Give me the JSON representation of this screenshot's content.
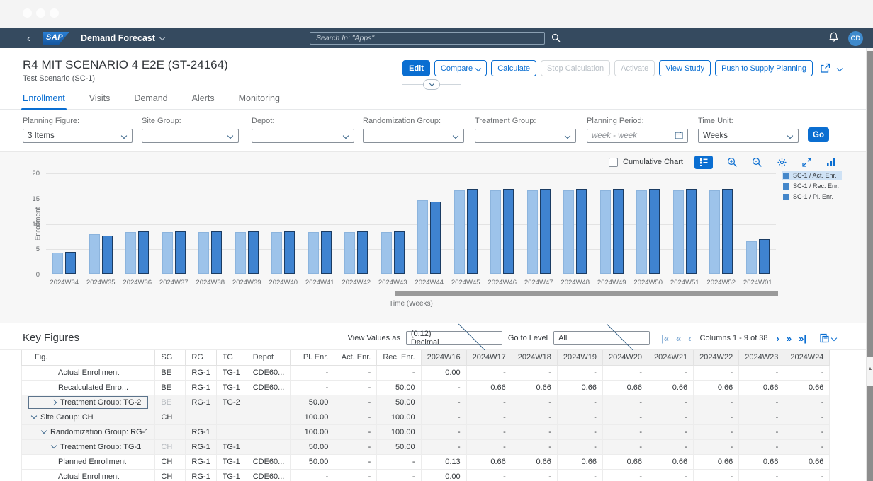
{
  "shell": {
    "logo_text": "SAP",
    "app_title": "Demand Forecast",
    "search_placeholder": "Search In: \"Apps\"",
    "avatar_initials": "CD"
  },
  "page": {
    "title": "R4 MIT SCENARIO 4 E2E (ST-24164)",
    "subtitle": "Test Scenario (SC-1)"
  },
  "header_actions": {
    "edit": "Edit",
    "compare": "Compare",
    "calculate": "Calculate",
    "stop_calculation": "Stop Calculation",
    "activate": "Activate",
    "view_study": "View Study",
    "push_to_supply_planning": "Push to Supply Planning"
  },
  "tabs": [
    {
      "label": "Enrollment",
      "active": true
    },
    {
      "label": "Visits",
      "active": false
    },
    {
      "label": "Demand",
      "active": false
    },
    {
      "label": "Alerts",
      "active": false
    },
    {
      "label": "Monitoring",
      "active": false
    }
  ],
  "filters": [
    {
      "label": "Planning Figure:",
      "value": "3 Items",
      "type": "select"
    },
    {
      "label": "Site Group:",
      "value": "",
      "type": "select"
    },
    {
      "label": "Depot:",
      "value": "",
      "type": "select"
    },
    {
      "label": "Randomization Group:",
      "value": "",
      "type": "select"
    },
    {
      "label": "Treatment Group:",
      "value": "",
      "type": "select"
    },
    {
      "label": "Planning Period:",
      "value": "",
      "placeholder": "week - week",
      "type": "date"
    },
    {
      "label": "Time Unit:",
      "value": "Weeks",
      "type": "select"
    }
  ],
  "go_button": "Go",
  "chart_toolbar": {
    "cumulative_chart_label": "Cumulative Chart"
  },
  "chart_data": {
    "type": "bar",
    "title": "",
    "xlabel": "Time (Weeks)",
    "ylabel": "Enrollment",
    "ylim": [
      0,
      20
    ],
    "yticks": [
      0,
      5,
      10,
      15,
      20
    ],
    "grid": true,
    "legend_position": "right",
    "categories": [
      "2024W34",
      "2024W35",
      "2024W36",
      "2024W37",
      "2024W38",
      "2024W39",
      "2024W40",
      "2024W41",
      "2024W42",
      "2024W43",
      "2024W44",
      "2024W45",
      "2024W46",
      "2024W47",
      "2024W48",
      "2024W49",
      "2024W50",
      "2024W51",
      "2024W52",
      "2024W01"
    ],
    "series": [
      {
        "name": "SC-1 / Act. Enr.",
        "color": "#5697d9",
        "values": null,
        "selected": true
      },
      {
        "name": "SC-1 / Rec. Enr.",
        "color": "#9dc3ea",
        "values": [
          4.2,
          7.8,
          8.2,
          8.2,
          8.2,
          8.2,
          8.2,
          8.2,
          8.2,
          8.2,
          14.5,
          16.5,
          16.5,
          16.5,
          16.5,
          16.5,
          16.5,
          16.5,
          16.5,
          6.5
        ]
      },
      {
        "name": "SC-1 / Pl. Enr.",
        "color": "#3f83d0",
        "values": [
          4.4,
          7.5,
          8.4,
          8.4,
          8.4,
          8.4,
          8.4,
          8.4,
          8.4,
          8.4,
          14.2,
          16.8,
          16.8,
          16.8,
          16.8,
          16.8,
          16.8,
          16.8,
          16.8,
          6.8
        ]
      }
    ]
  },
  "key_figures": {
    "title": "Key Figures",
    "view_values_label": "View Values as",
    "view_values_value": "(0.12) Decimal",
    "go_to_level_label": "Go to Level",
    "go_to_level_value": "All",
    "columns_info": "Columns 1 - 9 of 38"
  },
  "table": {
    "fixed_headers": [
      "Fig.",
      "SG",
      "RG",
      "TG",
      "Depot",
      "Pl. Enr.",
      "Act. Enr.",
      "Rec. Enr."
    ],
    "week_headers": [
      "2024W16",
      "2024W17",
      "2024W18",
      "2024W19",
      "2024W20",
      "2024W21",
      "2024W22",
      "2024W23",
      "2024W24"
    ],
    "rows": [
      {
        "type": "leaf",
        "fig": "Actual Enrollment",
        "sg": "BE",
        "rg": "RG-1",
        "tg": "TG-1",
        "depot": "CDE60...",
        "pl": "-",
        "act": "-",
        "rec": "-",
        "weeks": [
          "0.00",
          "-",
          "-",
          "-",
          "-",
          "-",
          "-",
          "-",
          "-"
        ]
      },
      {
        "type": "leaf",
        "fig": "Recalculated Enro...",
        "sg": "BE",
        "rg": "RG-1",
        "tg": "TG-1",
        "depot": "CDE60...",
        "pl": "-",
        "act": "-",
        "rec": "50.00",
        "weeks": [
          "-",
          "0.66",
          "0.66",
          "0.66",
          "0.66",
          "0.66",
          "0.66",
          "0.66",
          "0.66"
        ]
      },
      {
        "type": "group",
        "level": 2,
        "expanded": false,
        "focused": true,
        "fig": "Treatment Group: TG-2",
        "sg": "BE",
        "sg_muted": true,
        "rg": "RG-1",
        "tg": "TG-2",
        "depot": "",
        "pl": "50.00",
        "act": "-",
        "rec": "50.00",
        "weeks": [
          "-",
          "-",
          "-",
          "-",
          "-",
          "-",
          "-",
          "-",
          "-"
        ]
      },
      {
        "type": "group",
        "level": 0,
        "expanded": true,
        "fig": "Site Group: CH",
        "sg": "CH",
        "rg": "",
        "tg": "",
        "depot": "",
        "pl": "100.00",
        "act": "-",
        "rec": "100.00",
        "weeks": [
          "-",
          "-",
          "-",
          "-",
          "-",
          "-",
          "-",
          "-",
          "-"
        ]
      },
      {
        "type": "group",
        "level": 1,
        "expanded": true,
        "fig": "Randomization Group: RG-1",
        "sg": "",
        "rg": "RG-1",
        "tg": "",
        "depot": "",
        "pl": "100.00",
        "act": "-",
        "rec": "100.00",
        "weeks": [
          "-",
          "-",
          "-",
          "-",
          "-",
          "-",
          "-",
          "-",
          "-"
        ]
      },
      {
        "type": "group",
        "level": 2,
        "expanded": true,
        "fig": "Treatment Group: TG-1",
        "sg": "CH",
        "sg_muted": true,
        "rg": "RG-1",
        "tg": "TG-1",
        "depot": "",
        "pl": "50.00",
        "act": "-",
        "rec": "50.00",
        "weeks": [
          "-",
          "-",
          "-",
          "-",
          "-",
          "-",
          "-",
          "-",
          "-"
        ]
      },
      {
        "type": "leaf",
        "fig": "Planned Enrollment",
        "sg": "CH",
        "rg": "RG-1",
        "tg": "TG-1",
        "depot": "CDE60...",
        "pl": "50.00",
        "act": "-",
        "rec": "-",
        "weeks": [
          "0.13",
          "0.66",
          "0.66",
          "0.66",
          "0.66",
          "0.66",
          "0.66",
          "0.66",
          "0.66"
        ]
      },
      {
        "type": "leaf",
        "fig": "Actual Enrollment",
        "sg": "CH",
        "rg": "RG-1",
        "tg": "TG-1",
        "depot": "CDE60...",
        "pl": "-",
        "act": "-",
        "rec": "-",
        "weeks": [
          "0.00",
          "-",
          "-",
          "-",
          "-",
          "-",
          "-",
          "-",
          "-"
        ]
      }
    ]
  }
}
